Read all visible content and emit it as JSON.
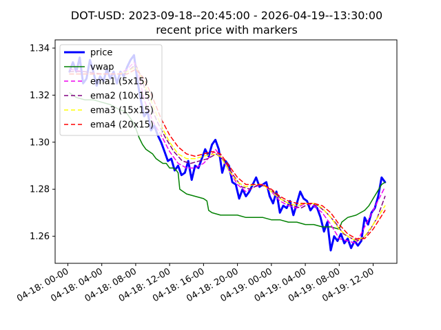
{
  "chart_data": {
    "type": "line",
    "title": "DOT-USD: 2023-09-18--20:45:00 - 2026-04-19--13:30:00",
    "subtitle": "recent price with markers",
    "xlabel": "",
    "ylabel": "",
    "ylim": [
      1.2485,
      1.3435
    ],
    "xlim": [
      -1.5,
      38.8
    ],
    "grid": false,
    "legend_position": "top-left",
    "y_ticks": [
      {
        "value": 1.26,
        "label": "1.26"
      },
      {
        "value": 1.28,
        "label": "1.28"
      },
      {
        "value": 1.3,
        "label": "1.30"
      },
      {
        "value": 1.32,
        "label": "1.32"
      },
      {
        "value": 1.34,
        "label": "1.34"
      }
    ],
    "x_ticks": [
      {
        "value": 0,
        "label": "04-18: 00-00"
      },
      {
        "value": 4,
        "label": "04-18: 04-00"
      },
      {
        "value": 8,
        "label": "04-18: 08-00"
      },
      {
        "value": 12,
        "label": "04-18: 12-00"
      },
      {
        "value": 16,
        "label": "04-18: 16-00"
      },
      {
        "value": 20,
        "label": "04-18: 20-00"
      },
      {
        "value": 24,
        "label": "04-19: 00-00"
      },
      {
        "value": 28,
        "label": "04-19: 04-00"
      },
      {
        "value": 32,
        "label": "04-19: 08-00"
      },
      {
        "value": 36,
        "label": "04-19: 12-00"
      }
    ],
    "series": [
      {
        "name": "price",
        "color": "#0000ff",
        "dash": "solid",
        "width": 3,
        "x": [
          0.2,
          0.6,
          1.0,
          1.4,
          1.8,
          2.2,
          2.6,
          3.0,
          3.4,
          3.8,
          4.2,
          4.6,
          5.0,
          5.4,
          5.8,
          6.2,
          6.6,
          7.0,
          7.4,
          7.8,
          8.2,
          8.6,
          9.0,
          9.4,
          9.8,
          10.2,
          10.6,
          11.0,
          11.4,
          11.8,
          12.2,
          12.6,
          13.0,
          13.4,
          13.8,
          14.2,
          14.6,
          15.0,
          15.4,
          15.8,
          16.2,
          16.6,
          17.0,
          17.4,
          17.8,
          18.2,
          18.6,
          19.0,
          19.4,
          19.8,
          20.2,
          20.6,
          21.0,
          21.4,
          21.8,
          22.2,
          22.6,
          23.0,
          23.4,
          23.8,
          24.2,
          24.6,
          25.0,
          25.4,
          25.8,
          26.2,
          26.6,
          27.0,
          27.4,
          27.8,
          28.2,
          28.6,
          29.0,
          29.4,
          29.8,
          30.2,
          30.6,
          31.0,
          31.4,
          31.8,
          32.2,
          32.6,
          33.0,
          33.4,
          33.8,
          34.2,
          34.6,
          35.0,
          35.4,
          35.8,
          36.2,
          36.6,
          37.0,
          37.4
        ],
        "values": [
          1.33,
          1.334,
          1.33,
          1.336,
          1.325,
          1.327,
          1.335,
          1.33,
          1.324,
          1.328,
          1.326,
          1.331,
          1.327,
          1.33,
          1.325,
          1.33,
          1.328,
          1.332,
          1.335,
          1.337,
          1.326,
          1.318,
          1.311,
          1.313,
          1.305,
          1.307,
          1.303,
          1.3,
          1.296,
          1.292,
          1.293,
          1.288,
          1.29,
          1.286,
          1.287,
          1.292,
          1.284,
          1.29,
          1.289,
          1.293,
          1.297,
          1.294,
          1.299,
          1.301,
          1.297,
          1.287,
          1.292,
          1.29,
          1.283,
          1.282,
          1.276,
          1.28,
          1.277,
          1.279,
          1.282,
          1.285,
          1.281,
          1.282,
          1.283,
          1.277,
          1.274,
          1.279,
          1.27,
          1.273,
          1.272,
          1.275,
          1.269,
          1.274,
          1.279,
          1.276,
          1.275,
          1.271,
          1.273,
          1.272,
          1.268,
          1.262,
          1.266,
          1.254,
          1.26,
          1.258,
          1.261,
          1.257,
          1.259,
          1.255,
          1.258,
          1.256,
          1.258,
          1.268,
          1.265,
          1.27,
          1.272,
          1.277,
          1.285,
          1.283
        ]
      },
      {
        "name": "vwap",
        "color": "#008000",
        "dash": "solid",
        "width": 1.5,
        "x": [
          0.2,
          1.0,
          2.0,
          3.0,
          4.0,
          5.0,
          6.0,
          6.8,
          7.2,
          7.6,
          8.0,
          8.4,
          8.8,
          9.2,
          9.6,
          10.0,
          10.4,
          10.8,
          11.2,
          11.6,
          12.0,
          12.4,
          12.8,
          13.0,
          13.2,
          14.0,
          15.0,
          16.0,
          16.4,
          16.6,
          17.0,
          18.0,
          19.0,
          20.0,
          21.0,
          22.0,
          23.0,
          24.0,
          25.0,
          26.0,
          27.0,
          28.0,
          29.0,
          30.0,
          31.0,
          32.0,
          32.3,
          33.0,
          34.0,
          35.0,
          35.5,
          36.0,
          36.5,
          37.0,
          37.4
        ],
        "values": [
          1.321,
          1.319,
          1.318,
          1.318,
          1.317,
          1.316,
          1.314,
          1.313,
          1.311,
          1.309,
          1.306,
          1.302,
          1.299,
          1.297,
          1.296,
          1.295,
          1.293,
          1.292,
          1.291,
          1.291,
          1.289,
          1.289,
          1.288,
          1.287,
          1.28,
          1.278,
          1.277,
          1.276,
          1.275,
          1.271,
          1.27,
          1.269,
          1.269,
          1.269,
          1.268,
          1.268,
          1.268,
          1.267,
          1.267,
          1.266,
          1.266,
          1.265,
          1.265,
          1.264,
          1.264,
          1.263,
          1.266,
          1.268,
          1.269,
          1.271,
          1.273,
          1.276,
          1.279,
          1.282,
          1.283
        ]
      },
      {
        "name": "ema1 (5x15)",
        "color": "#ee00ee",
        "dash": "6,4",
        "width": 1.5,
        "x": [
          0.2,
          2.0,
          4.0,
          6.0,
          7.0,
          7.8,
          8.2,
          9.0,
          10.0,
          11.0,
          12.0,
          13.0,
          14.0,
          15.0,
          16.0,
          16.8,
          17.4,
          18.0,
          19.0,
          20.0,
          21.0,
          22.0,
          23.0,
          24.0,
          25.0,
          26.0,
          27.0,
          28.0,
          29.0,
          30.0,
          31.0,
          32.0,
          33.0,
          34.0,
          35.0,
          36.0,
          37.4
        ],
        "values": [
          1.331,
          1.33,
          1.329,
          1.329,
          1.331,
          1.334,
          1.331,
          1.318,
          1.309,
          1.303,
          1.296,
          1.291,
          1.289,
          1.289,
          1.291,
          1.294,
          1.297,
          1.294,
          1.288,
          1.282,
          1.279,
          1.281,
          1.282,
          1.279,
          1.275,
          1.273,
          1.272,
          1.274,
          1.273,
          1.27,
          1.265,
          1.259,
          1.258,
          1.257,
          1.264,
          1.271,
          1.281
        ]
      },
      {
        "name": "ema2 (10x15)",
        "color": "#800080",
        "dash": "6,4",
        "width": 1.5,
        "x": [
          0.2,
          2.0,
          4.0,
          6.0,
          7.0,
          8.0,
          8.5,
          9.5,
          10.5,
          11.5,
          12.5,
          13.5,
          14.5,
          15.5,
          16.5,
          17.5,
          18.5,
          19.5,
          20.5,
          21.5,
          22.5,
          23.5,
          24.5,
          25.5,
          26.5,
          27.5,
          28.5,
          29.5,
          30.5,
          31.5,
          32.5,
          33.5,
          34.5,
          35.5,
          36.5,
          37.4
        ],
        "values": [
          1.33,
          1.33,
          1.329,
          1.329,
          1.33,
          1.333,
          1.329,
          1.318,
          1.309,
          1.302,
          1.296,
          1.292,
          1.291,
          1.292,
          1.293,
          1.295,
          1.292,
          1.286,
          1.281,
          1.28,
          1.282,
          1.281,
          1.278,
          1.275,
          1.273,
          1.272,
          1.274,
          1.273,
          1.27,
          1.266,
          1.261,
          1.259,
          1.258,
          1.262,
          1.268,
          1.277
        ]
      },
      {
        "name": "ema3 (15x15)",
        "color": "#ffff00",
        "dash": "6,4",
        "width": 1.5,
        "x": [
          0.2,
          2.0,
          4.0,
          6.0,
          7.0,
          8.0,
          9.0,
          10.0,
          11.0,
          12.0,
          13.0,
          14.0,
          15.0,
          16.0,
          17.0,
          18.0,
          19.0,
          20.0,
          21.0,
          22.0,
          23.0,
          24.0,
          25.0,
          26.0,
          27.0,
          28.0,
          29.0,
          30.0,
          31.0,
          32.0,
          33.0,
          34.0,
          35.0,
          36.0,
          37.4
        ],
        "values": [
          1.329,
          1.329,
          1.329,
          1.329,
          1.33,
          1.332,
          1.325,
          1.316,
          1.307,
          1.3,
          1.295,
          1.293,
          1.293,
          1.294,
          1.295,
          1.294,
          1.288,
          1.283,
          1.281,
          1.282,
          1.282,
          1.279,
          1.276,
          1.274,
          1.273,
          1.274,
          1.274,
          1.272,
          1.268,
          1.263,
          1.26,
          1.258,
          1.26,
          1.265,
          1.273
        ]
      },
      {
        "name": "ema4 (20x15)",
        "color": "#ff0000",
        "dash": "6,4",
        "width": 1.5,
        "x": [
          0.2,
          2.0,
          4.0,
          6.0,
          7.0,
          8.0,
          9.0,
          10.0,
          11.0,
          12.0,
          13.0,
          14.0,
          15.0,
          16.0,
          17.0,
          18.0,
          19.0,
          20.0,
          21.0,
          22.0,
          23.0,
          24.0,
          25.0,
          26.0,
          27.0,
          28.0,
          29.0,
          30.0,
          31.0,
          32.0,
          33.0,
          34.0,
          35.0,
          36.0,
          37.4
        ],
        "values": [
          1.329,
          1.329,
          1.329,
          1.329,
          1.329,
          1.331,
          1.327,
          1.319,
          1.31,
          1.303,
          1.298,
          1.295,
          1.294,
          1.295,
          1.296,
          1.295,
          1.29,
          1.285,
          1.282,
          1.282,
          1.282,
          1.28,
          1.277,
          1.275,
          1.274,
          1.274,
          1.274,
          1.273,
          1.27,
          1.265,
          1.261,
          1.259,
          1.259,
          1.263,
          1.271
        ]
      }
    ]
  }
}
